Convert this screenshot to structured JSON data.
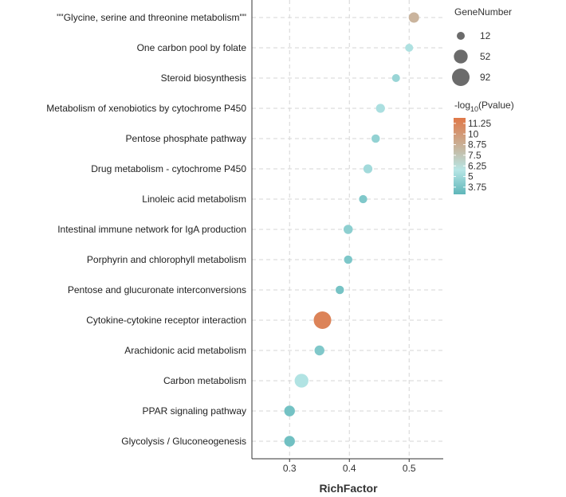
{
  "chart_data": {
    "type": "scatter",
    "xlabel": "RichFactor",
    "xlim": [
      0.237,
      0.557
    ],
    "xticks": [
      0.3,
      0.4,
      0.5
    ],
    "grid": true,
    "categories": [
      "\"\"Glycine, serine and threonine metabolism\"\"",
      "One carbon pool by folate",
      "Steroid biosynthesis",
      "Metabolism of xenobiotics by cytochrome P450",
      "Pentose phosphate pathway",
      "Drug metabolism - cytochrome P450",
      "Linoleic acid metabolism",
      "Intestinal immune network for IgA production",
      "Porphyrin and chlorophyll metabolism",
      "Pentose and glucuronate interconversions",
      "Cytokine-cytokine receptor interaction",
      "Arachidonic acid metabolism",
      "Carbon metabolism",
      "PPAR signaling pathway",
      "Glycolysis / Gluconeogenesis"
    ],
    "points": [
      {
        "category": "\"\"Glycine, serine and threonine metabolism\"\"",
        "rich_factor": 0.508,
        "gene_number": 25,
        "neg_log10_p": 8.6
      },
      {
        "category": "One carbon pool by folate",
        "rich_factor": 0.5,
        "gene_number": 12,
        "neg_log10_p": 5.5
      },
      {
        "category": "Steroid biosynthesis",
        "rich_factor": 0.478,
        "gene_number": 12,
        "neg_log10_p": 4.8
      },
      {
        "category": "Metabolism of xenobiotics by cytochrome P450",
        "rich_factor": 0.452,
        "gene_number": 17,
        "neg_log10_p": 5.4
      },
      {
        "category": "Pentose phosphate pathway",
        "rich_factor": 0.444,
        "gene_number": 14,
        "neg_log10_p": 4.6
      },
      {
        "category": "Drug metabolism - cytochrome P450",
        "rich_factor": 0.431,
        "gene_number": 17,
        "neg_log10_p": 5.1
      },
      {
        "category": "Linoleic acid metabolism",
        "rich_factor": 0.423,
        "gene_number": 13,
        "neg_log10_p": 4.0
      },
      {
        "category": "Intestinal immune network for IgA production",
        "rich_factor": 0.398,
        "gene_number": 18,
        "neg_log10_p": 4.4
      },
      {
        "category": "Porphyrin and chlorophyll metabolism",
        "rich_factor": 0.398,
        "gene_number": 14,
        "neg_log10_p": 3.9
      },
      {
        "category": "Pentose and glucuronate interconversions",
        "rich_factor": 0.384,
        "gene_number": 14,
        "neg_log10_p": 3.7
      },
      {
        "category": "Cytokine-cytokine receptor interaction",
        "rich_factor": 0.355,
        "gene_number": 92,
        "neg_log10_p": 11.3
      },
      {
        "category": "Arachidonic acid metabolism",
        "rich_factor": 0.35,
        "gene_number": 22,
        "neg_log10_p": 4.0
      },
      {
        "category": "Carbon metabolism",
        "rich_factor": 0.32,
        "gene_number": 52,
        "neg_log10_p": 5.6
      },
      {
        "category": "PPAR signaling pathway",
        "rich_factor": 0.3,
        "gene_number": 27,
        "neg_log10_p": 3.6
      },
      {
        "category": "Glycolysis / Gluconeogenesis",
        "rich_factor": 0.3,
        "gene_number": 27,
        "neg_log10_p": 3.5
      }
    ],
    "size_legend": {
      "title": "GeneNumber",
      "values": [
        12,
        52,
        92
      ]
    },
    "color_legend": {
      "title_prefix": "-log",
      "title_sub": "10",
      "title_suffix": "(Pvalue)",
      "ticks": [
        11.25,
        10,
        8.75,
        7.5,
        6.25,
        5,
        3.75
      ],
      "tick_labels": [
        "11.25",
        "10",
        "8.75",
        "7.5",
        "6.25",
        "5",
        "3.75"
      ],
      "range": [
        2.9,
        11.9
      ],
      "low_color": "#5fb6b9",
      "mid_color": "#b7e6e6",
      "high_color": "#e07848",
      "mid_value": 5.8
    },
    "legend_placement": "right"
  }
}
